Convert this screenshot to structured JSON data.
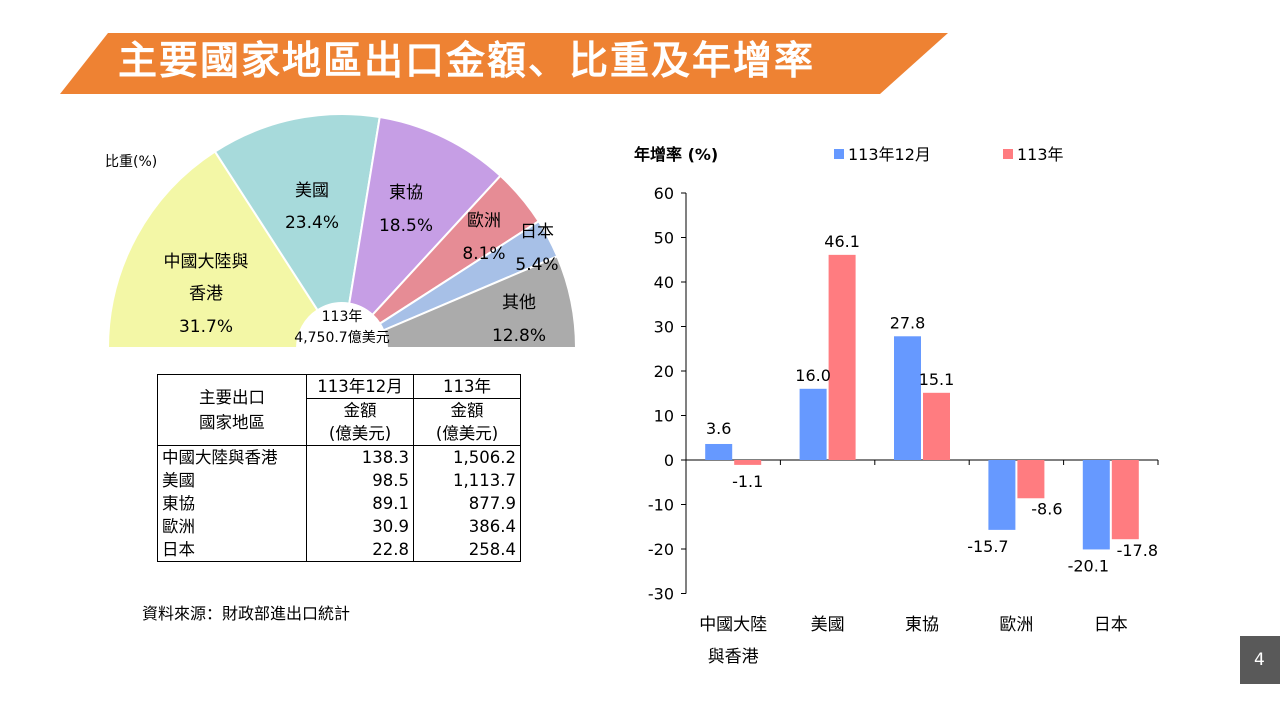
{
  "title": "主要國家地區出口金額、比重及年增率",
  "page_number": "4",
  "colors": {
    "banner": "#EE8233",
    "series_month": "#6699FF",
    "series_year": "#FF7C80",
    "pie": [
      "#F3F7A6",
      "#A7DADB",
      "#C69EE5",
      "#E68C95",
      "#A7C0E7",
      "#ABABAB"
    ]
  },
  "source": "資料來源：財政部進出口統計",
  "table": {
    "header_left": [
      "主要出口",
      "國家地區"
    ],
    "columns": [
      {
        "period": "113年12月",
        "unit_lines": [
          "金額",
          "(億美元)"
        ]
      },
      {
        "period": "113年",
        "unit_lines": [
          "金額",
          "(億美元)"
        ]
      }
    ],
    "rows": [
      {
        "name": "中國大陸與香港",
        "month": "138.3",
        "year": "1,506.2"
      },
      {
        "name": "美國",
        "month": "98.5",
        "year": "1,113.7"
      },
      {
        "name": "東協",
        "month": "89.1",
        "year": "877.9"
      },
      {
        "name": "歐洲",
        "month": "30.9",
        "year": "386.4"
      },
      {
        "name": "日本",
        "month": "22.8",
        "year": "258.4"
      }
    ]
  },
  "chart_data": [
    {
      "type": "pie",
      "subtype": "half-donut",
      "ylabel": "比重(%)",
      "center_label": [
        "113年",
        "4,750.7億美元"
      ],
      "slices": [
        {
          "label_lines": [
            "中國大陸與",
            "香港"
          ],
          "value": 31.7,
          "value_label": "31.7%"
        },
        {
          "label_lines": [
            "美國"
          ],
          "value": 23.4,
          "value_label": "23.4%"
        },
        {
          "label_lines": [
            "東協"
          ],
          "value": 18.5,
          "value_label": "18.5%"
        },
        {
          "label_lines": [
            "歐洲"
          ],
          "value": 8.1,
          "value_label": "8.1%"
        },
        {
          "label_lines": [
            "日本"
          ],
          "value": 5.4,
          "value_label": "5.4%"
        },
        {
          "label_lines": [
            "其他"
          ],
          "value": 12.8,
          "value_label": "12.8%"
        }
      ]
    },
    {
      "type": "bar",
      "ylabel": "年增率 (%)",
      "categories": [
        [
          "中國大陸",
          "與香港"
        ],
        [
          "美國"
        ],
        [
          "東協"
        ],
        [
          "歐洲"
        ],
        [
          "日本"
        ]
      ],
      "series": [
        {
          "name": "113年12月",
          "values": [
            3.6,
            16.0,
            27.8,
            -15.7,
            -20.1
          ],
          "labels": [
            "3.6",
            "16.0",
            "27.8",
            "-15.7",
            "-20.1"
          ]
        },
        {
          "name": "113年",
          "values": [
            -1.1,
            46.1,
            15.1,
            -8.6,
            -17.8
          ],
          "labels": [
            "-1.1",
            "46.1",
            "15.1",
            "-8.6",
            "-17.8"
          ]
        }
      ],
      "ylim": [
        -30,
        60
      ],
      "yticks": [
        -30,
        -20,
        -10,
        0,
        10,
        20,
        30,
        40,
        50,
        60
      ],
      "legend": "top",
      "grid": false
    }
  ]
}
